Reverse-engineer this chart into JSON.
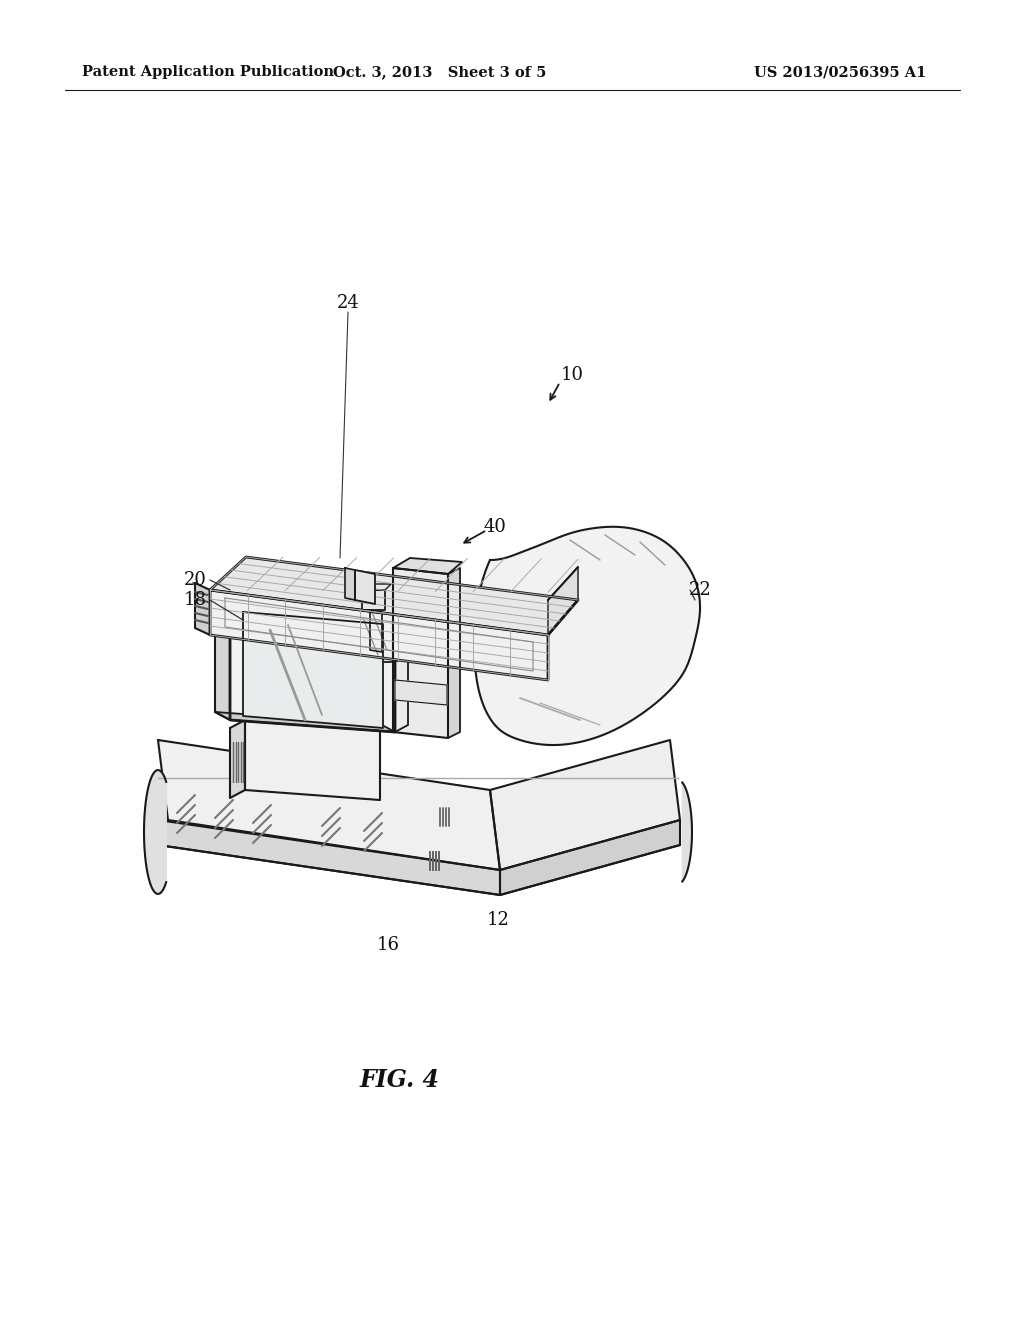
{
  "header_left": "Patent Application Publication",
  "header_mid": "Oct. 3, 2013   Sheet 3 of 5",
  "header_right": "US 2013/0256395 A1",
  "caption": "FIG. 4",
  "bg": "#ffffff",
  "lc": "#1a1a1a",
  "figsize": [
    10.24,
    13.2
  ],
  "dpi": 100
}
